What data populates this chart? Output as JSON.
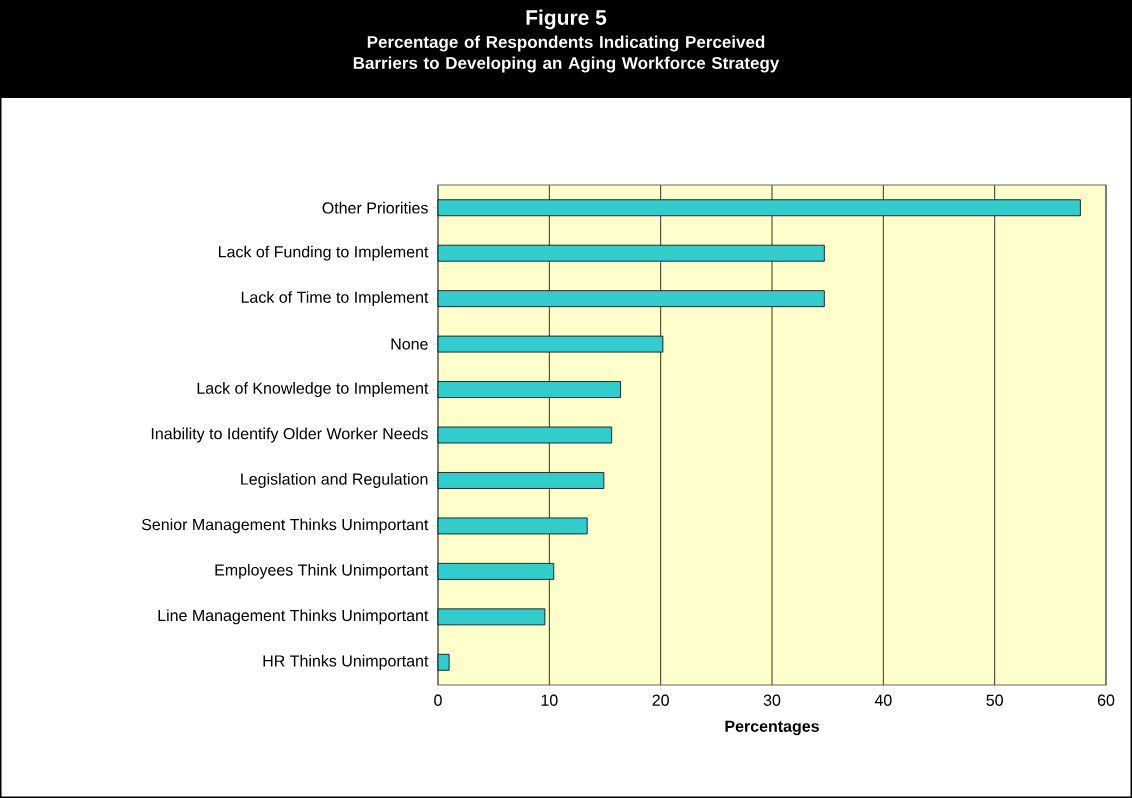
{
  "chart_data": {
    "type": "bar",
    "orientation": "horizontal",
    "title": "Figure 5",
    "subtitle": "Percentage of Respondents Indicating Perceived Barriers to Developing an Aging Workforce Strategy",
    "categories": [
      "Other Priorities",
      "Lack of Funding to Implement",
      "Lack of Time to Implement",
      "None",
      "Lack of Knowledge to Implement",
      "Inability to Identify Older Worker Needs",
      "Legislation and Regulation",
      "Senior Management Thinks Unimportant",
      "Employees Think Unimportant",
      "Line Management Thinks Unimportant",
      "HR Thinks Unimportant"
    ],
    "values": [
      57.7,
      34.7,
      34.7,
      20.2,
      16.4,
      15.6,
      14.9,
      13.4,
      10.4,
      9.6,
      1.0
    ],
    "color": "#33cccc",
    "xlim": [
      0,
      60
    ],
    "xticks": [
      0,
      10,
      20,
      30,
      40,
      50,
      60
    ],
    "xlabel": "Percentages",
    "grid": "x"
  }
}
